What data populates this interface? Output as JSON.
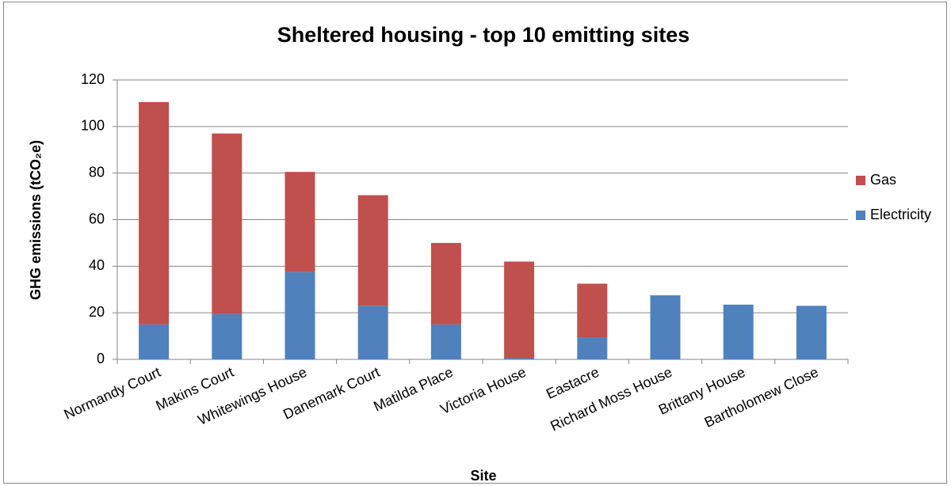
{
  "chart_data": {
    "type": "stacked_bar",
    "title": "Sheltered housing - top 10 emitting sites",
    "x_label": "Site",
    "y_label": "GHG emissions (tCO₂e)",
    "categories": [
      "Normandy Court",
      "Makins Court",
      "Whitewings House",
      "Danemark Court",
      "Matilda Place",
      "Victoria House",
      "Eastacre",
      "Richard Moss House",
      "Brittany House",
      "Bartholomew Close"
    ],
    "series": [
      {
        "name": "Electricity",
        "color": "#4f81bd",
        "values": [
          15,
          19.5,
          37.5,
          23,
          15,
          0.5,
          9.5,
          27.5,
          23.5,
          23
        ]
      },
      {
        "name": "Gas",
        "color": "#c0504d",
        "values": [
          95.5,
          77.5,
          43,
          47.5,
          35,
          41.5,
          23,
          0,
          0,
          0
        ]
      }
    ],
    "ylim": [
      0,
      120
    ],
    "yticks": [
      0,
      20,
      40,
      60,
      80,
      100,
      120
    ],
    "grid": true,
    "legend": "right"
  }
}
